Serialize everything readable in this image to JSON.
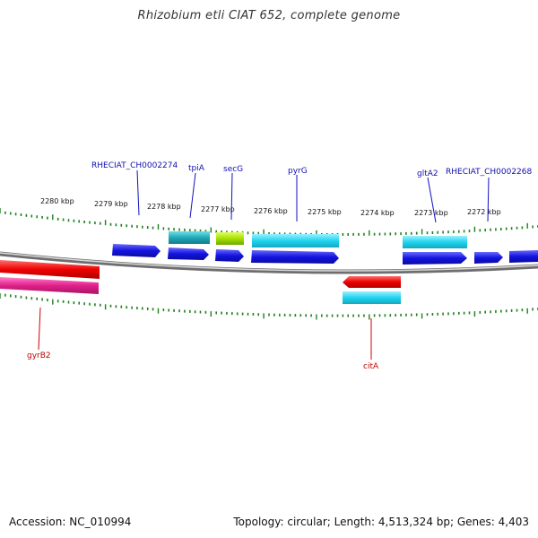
{
  "title": "Rhizobium etli CIAT 652, complete genome",
  "footer": {
    "accession": "Accession: NC_010994",
    "stats": "Topology: circular; Length: 4,513,324 bp; Genes: 4,403"
  },
  "colors": {
    "forward_cds": "#1010e0",
    "reverse_cds": "#e00000",
    "rna_cyan": "#20d0e0",
    "teal": "#20a0b0",
    "lime": "#a0e000",
    "pink": "#e0208a",
    "tick": "#208020",
    "backbone": "#888888"
  },
  "kbp_labels": [
    "2280 kbp",
    "2279 kbp",
    "2278 kbp",
    "2277 kbp",
    "2276 kbp",
    "2275 kbp",
    "2274 kbp",
    "2273 kbp",
    "2272 kbp"
  ],
  "gene_labels_top": [
    {
      "text": "RHECIAT_CH0002274"
    },
    {
      "text": "tpiA"
    },
    {
      "text": "secG"
    },
    {
      "text": "pyrG"
    },
    {
      "text": "gltA2"
    },
    {
      "text": "RHECIAT_CH0002268"
    }
  ],
  "gene_labels_bottom": [
    {
      "text": "gyrB2"
    },
    {
      "text": "citA"
    }
  ]
}
